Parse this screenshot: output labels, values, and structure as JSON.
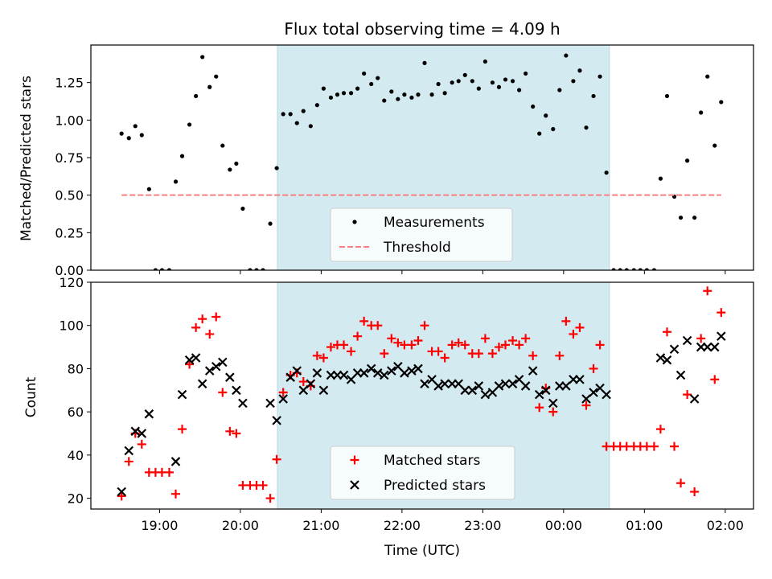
{
  "title": "Flux total observing time = 4.09 h",
  "chart_data": [
    {
      "type": "scatter",
      "title": "Flux total observing time = 4.09 h",
      "xlabel": "",
      "ylabel": "Matched/Predicted stars",
      "xlim_hours": [
        18.15,
        26.35
      ],
      "ylim": [
        0,
        1.5
      ],
      "yticks": [
        0.0,
        0.25,
        0.5,
        0.75,
        1.0,
        1.25
      ],
      "ytick_labels": [
        "0.00",
        "0.25",
        "0.50",
        "0.75",
        "1.00",
        "1.25"
      ],
      "highlight_span_hours": [
        20.458,
        24.567
      ],
      "highlight_color": "#d3eaf1",
      "legend_position": "lower-center",
      "series": [
        {
          "name": "Measurements",
          "marker": "dot",
          "color": "#000000",
          "x": [
            18.53,
            18.62,
            18.7,
            18.78,
            18.87,
            18.95,
            19.03,
            19.12,
            19.2,
            19.28,
            19.37,
            19.45,
            19.53,
            19.62,
            19.7,
            19.78,
            19.87,
            19.95,
            20.03,
            20.12,
            20.2,
            20.28,
            20.37,
            20.45,
            20.53,
            20.62,
            20.7,
            20.78,
            20.87,
            20.95,
            21.03,
            21.12,
            21.2,
            21.28,
            21.37,
            21.45,
            21.53,
            21.62,
            21.7,
            21.78,
            21.87,
            21.95,
            22.03,
            22.12,
            22.2,
            22.28,
            22.37,
            22.45,
            22.53,
            22.62,
            22.7,
            22.78,
            22.87,
            22.95,
            23.03,
            23.12,
            23.2,
            23.28,
            23.37,
            23.45,
            23.53,
            23.62,
            23.7,
            23.78,
            23.87,
            23.95,
            24.03,
            24.12,
            24.2,
            24.28,
            24.37,
            24.45,
            24.53,
            24.62,
            24.7,
            24.78,
            24.87,
            24.95,
            25.03,
            25.12,
            25.2,
            25.28,
            25.37,
            25.45,
            25.53,
            25.62,
            25.7,
            25.78,
            25.87,
            25.95
          ],
          "y": [
            0.91,
            0.88,
            0.96,
            0.9,
            0.54,
            0.0,
            0.0,
            0.0,
            0.59,
            0.76,
            0.97,
            1.16,
            1.42,
            1.22,
            1.29,
            0.83,
            0.67,
            0.71,
            0.41,
            0.0,
            0.0,
            0.0,
            0.31,
            0.68,
            1.04,
            1.04,
            0.98,
            1.06,
            0.96,
            1.1,
            1.21,
            1.15,
            1.17,
            1.18,
            1.18,
            1.21,
            1.31,
            1.24,
            1.28,
            1.13,
            1.19,
            1.14,
            1.17,
            1.15,
            1.17,
            1.38,
            1.17,
            1.24,
            1.18,
            1.25,
            1.26,
            1.3,
            1.26,
            1.21,
            1.39,
            1.25,
            1.22,
            1.27,
            1.26,
            1.2,
            1.31,
            1.09,
            0.91,
            1.03,
            0.94,
            1.2,
            1.43,
            1.26,
            1.33,
            0.95,
            1.16,
            1.29,
            0.65,
            0.0,
            0.0,
            0.0,
            0.0,
            0.0,
            0.0,
            0.0,
            0.61,
            1.16,
            0.49,
            0.35,
            0.73,
            0.35,
            1.05,
            1.29,
            0.83,
            1.12
          ]
        },
        {
          "name": "Threshold",
          "marker": "dashed-line",
          "color": "#f88080",
          "x": [
            18.53,
            25.95
          ],
          "y": [
            0.5,
            0.5
          ]
        }
      ]
    },
    {
      "type": "scatter",
      "title": "",
      "xlabel": "Time (UTC)",
      "ylabel": "Count",
      "xlim_hours": [
        18.15,
        26.35
      ],
      "ylim": [
        15,
        120
      ],
      "yticks": [
        20,
        40,
        60,
        80,
        100,
        120
      ],
      "ytick_labels": [
        "20",
        "40",
        "60",
        "80",
        "100",
        "120"
      ],
      "xticks_hours": [
        19,
        20,
        21,
        22,
        23,
        24,
        25,
        26
      ],
      "xtick_labels": [
        "19:00",
        "20:00",
        "21:00",
        "22:00",
        "23:00",
        "00:00",
        "01:00",
        "02:00"
      ],
      "highlight_span_hours": [
        20.458,
        24.567
      ],
      "highlight_color": "#d3eaf1",
      "legend_position": "lower-center",
      "series": [
        {
          "name": "Matched stars",
          "marker": "plus",
          "color": "#ff0000",
          "x": [
            18.53,
            18.62,
            18.7,
            18.78,
            18.87,
            18.95,
            19.03,
            19.12,
            19.2,
            19.28,
            19.37,
            19.45,
            19.53,
            19.62,
            19.7,
            19.78,
            19.87,
            19.95,
            20.03,
            20.12,
            20.2,
            20.28,
            20.37,
            20.45,
            20.53,
            20.62,
            20.7,
            20.78,
            20.87,
            20.95,
            21.03,
            21.12,
            21.2,
            21.28,
            21.37,
            21.45,
            21.53,
            21.62,
            21.7,
            21.78,
            21.87,
            21.95,
            22.03,
            22.12,
            22.2,
            22.28,
            22.37,
            22.45,
            22.53,
            22.62,
            22.7,
            22.78,
            22.87,
            22.95,
            23.03,
            23.12,
            23.2,
            23.28,
            23.37,
            23.45,
            23.53,
            23.62,
            23.7,
            23.78,
            23.87,
            23.95,
            24.03,
            24.12,
            24.2,
            24.28,
            24.37,
            24.45,
            24.53,
            24.62,
            24.7,
            24.78,
            24.87,
            24.95,
            25.03,
            25.12,
            25.2,
            25.28,
            25.37,
            25.45,
            25.53,
            25.62,
            25.7,
            25.78,
            25.87,
            25.95
          ],
          "y": [
            21,
            37,
            50,
            45,
            32,
            32,
            32,
            32,
            22,
            52,
            82,
            99,
            103,
            96,
            104,
            69,
            51,
            50,
            26,
            26,
            26,
            26,
            20,
            38,
            69,
            77,
            78,
            74,
            72,
            86,
            85,
            90,
            91,
            91,
            88,
            95,
            102,
            100,
            100,
            87,
            94,
            92,
            91,
            91,
            93,
            100,
            88,
            88,
            85,
            91,
            92,
            91,
            87,
            87,
            94,
            87,
            90,
            91,
            93,
            91,
            94,
            86,
            62,
            71,
            60,
            86,
            102,
            96,
            99,
            63,
            80,
            91,
            44,
            44,
            44,
            44,
            44,
            44,
            44,
            44,
            52,
            97,
            44,
            27,
            68,
            23,
            94,
            116,
            75,
            106
          ]
        },
        {
          "name": "Predicted stars",
          "marker": "x",
          "color": "#000000",
          "x": [
            18.53,
            18.62,
            18.7,
            18.78,
            18.87,
            19.2,
            19.28,
            19.37,
            19.45,
            19.53,
            19.62,
            19.7,
            19.78,
            19.87,
            19.95,
            20.03,
            20.37,
            20.45,
            20.53,
            20.62,
            20.7,
            20.78,
            20.87,
            20.95,
            21.03,
            21.12,
            21.2,
            21.28,
            21.37,
            21.45,
            21.53,
            21.62,
            21.7,
            21.78,
            21.87,
            21.95,
            22.03,
            22.12,
            22.2,
            22.28,
            22.37,
            22.45,
            22.53,
            22.62,
            22.7,
            22.78,
            22.87,
            22.95,
            23.03,
            23.12,
            23.2,
            23.28,
            23.37,
            23.45,
            23.53,
            23.62,
            23.7,
            23.78,
            23.87,
            23.95,
            24.03,
            24.12,
            24.2,
            24.28,
            24.37,
            24.45,
            24.53,
            25.2,
            25.28,
            25.37,
            25.45,
            25.53,
            25.62,
            25.7,
            25.78,
            25.87,
            25.95
          ],
          "y": [
            23,
            42,
            51,
            50,
            59,
            37,
            68,
            84,
            85,
            73,
            79,
            81,
            83,
            76,
            70,
            64,
            64,
            56,
            66,
            76,
            79,
            70,
            73,
            78,
            70,
            77,
            77,
            77,
            75,
            78,
            78,
            80,
            78,
            77,
            79,
            81,
            78,
            79,
            80,
            73,
            75,
            72,
            73,
            73,
            73,
            70,
            70,
            72,
            68,
            69,
            72,
            73,
            73,
            75,
            72,
            79,
            68,
            70,
            64,
            72,
            72,
            75,
            75,
            66,
            69,
            71,
            68,
            85,
            84,
            89,
            77,
            93,
            66,
            90,
            90,
            90,
            95
          ]
        }
      ]
    }
  ]
}
